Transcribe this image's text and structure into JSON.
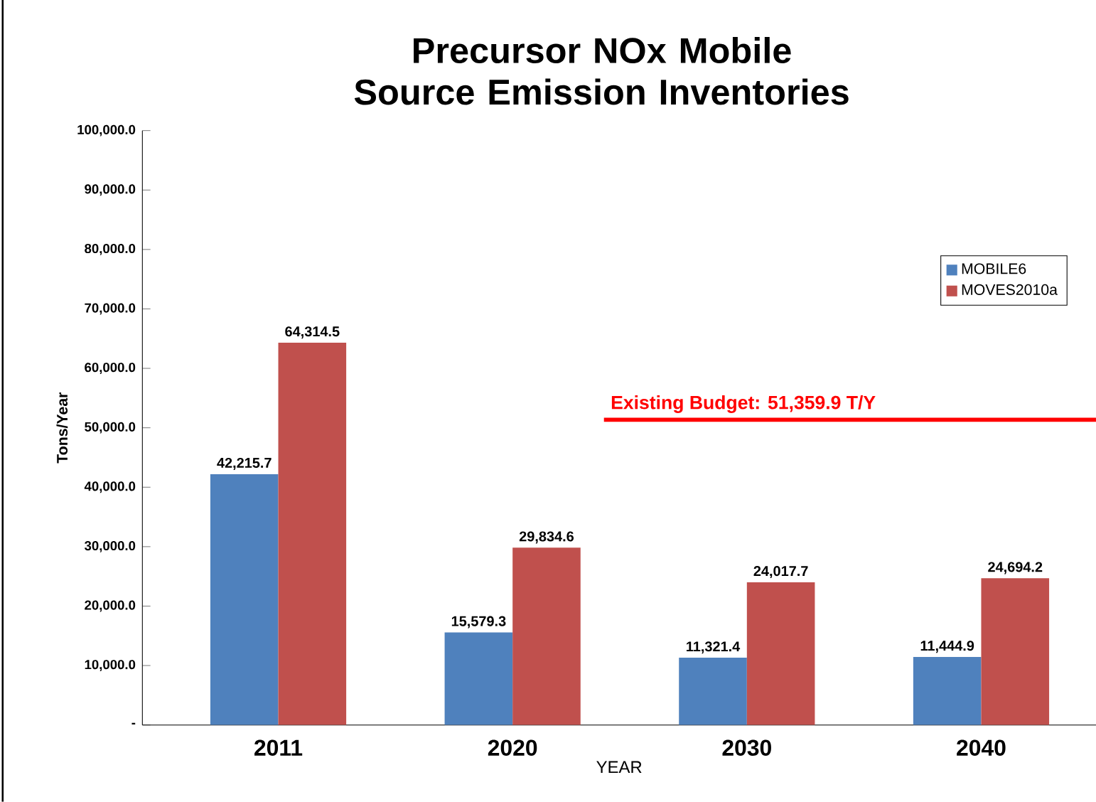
{
  "chart_data": {
    "type": "bar",
    "title": "Precursor NOx Mobile Source Emission Inventories",
    "xlabel": "YEAR",
    "ylabel": "Tons/Year",
    "categories": [
      "2011",
      "2020",
      "2030",
      "2040"
    ],
    "series": [
      {
        "name": "MOBILE6",
        "color": "#4f81bd",
        "values": [
          42215.7,
          15579.3,
          11321.4,
          11444.9
        ],
        "value_labels": [
          "42,215.7",
          "15,579.3",
          "11,321.4",
          "11,444.9"
        ]
      },
      {
        "name": "MOVES2010a",
        "color": "#c0504d",
        "values": [
          64314.5,
          29834.6,
          24017.7,
          24694.2
        ],
        "value_labels": [
          "64,314.5",
          "29,834.6",
          "24,017.7",
          "24,694.2"
        ]
      }
    ],
    "ylim": [
      0,
      100000
    ],
    "yticks": [
      {
        "value": 0,
        "label": "-"
      },
      {
        "value": 10000,
        "label": "10,000.0"
      },
      {
        "value": 20000,
        "label": "20,000.0"
      },
      {
        "value": 30000,
        "label": "30,000.0"
      },
      {
        "value": 40000,
        "label": "40,000.0"
      },
      {
        "value": 50000,
        "label": "50,000.0"
      },
      {
        "value": 60000,
        "label": "60,000.0"
      },
      {
        "value": 70000,
        "label": "70,000.0"
      },
      {
        "value": 80000,
        "label": "80,000.0"
      },
      {
        "value": 90000,
        "label": "90,000.0"
      },
      {
        "value": 100000,
        "label": "100,000.0"
      }
    ],
    "ref_lines": [
      {
        "axis": "y",
        "value": 51359.9,
        "label": "Existing Budget: 51,359.9 T/Y",
        "color": "#ff0000"
      }
    ],
    "legend": "top right",
    "grid": false
  }
}
